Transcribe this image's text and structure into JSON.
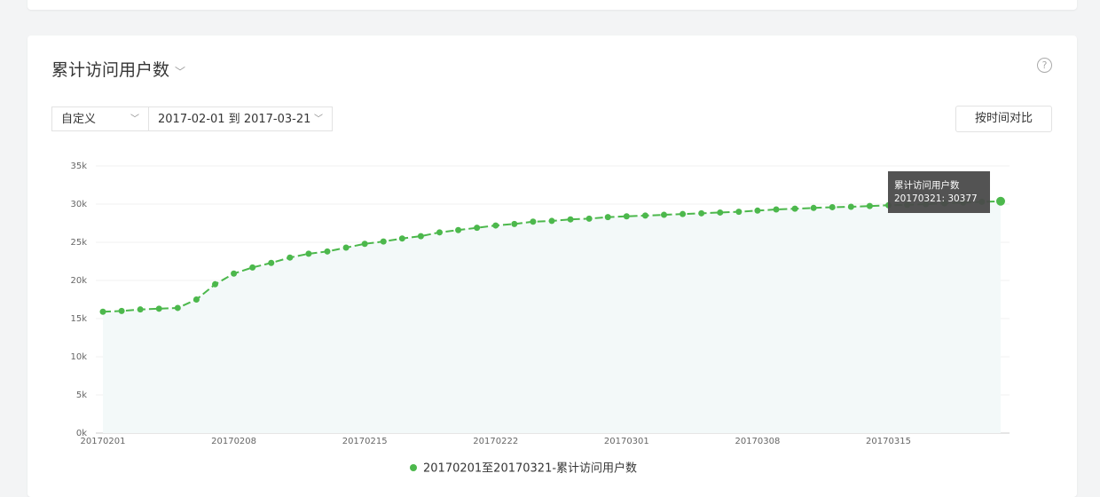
{
  "header": {
    "title": "累计访问用户数",
    "range_select": "自定义",
    "date_range": "2017-02-01 到 2017-03-21",
    "compare_button": "按时间对比"
  },
  "chart_data": {
    "type": "line",
    "categories": [
      "20170201",
      null,
      null,
      null,
      null,
      null,
      null,
      "20170208",
      null,
      null,
      null,
      null,
      null,
      null,
      "20170215",
      null,
      null,
      null,
      null,
      null,
      null,
      "20170222",
      null,
      null,
      null,
      null,
      null,
      null,
      "20170301",
      null,
      null,
      null,
      null,
      null,
      null,
      "20170308",
      null,
      null,
      null,
      null,
      null,
      null,
      "20170315",
      null,
      null,
      null,
      null,
      null,
      null
    ],
    "series": [
      {
        "name": "20170201至20170321-累计访问用户数",
        "color": "#4cb84c",
        "values": [
          15900,
          16000,
          16200,
          16300,
          16400,
          17500,
          19500,
          20900,
          21700,
          22300,
          23000,
          23500,
          23800,
          24300,
          24800,
          25100,
          25500,
          25800,
          26300,
          26600,
          26900,
          27200,
          27400,
          27700,
          27800,
          28000,
          28100,
          28300,
          28400,
          28500,
          28600,
          28700,
          28800,
          28900,
          29000,
          29150,
          29300,
          29400,
          29500,
          29600,
          29650,
          29750,
          29850,
          29900,
          30000,
          30100,
          30200,
          30300,
          30377
        ]
      }
    ],
    "ylim": [
      0,
      35000
    ],
    "yticks": [
      {
        "value": 0,
        "label": "0k"
      },
      {
        "value": 5000,
        "label": "5k"
      },
      {
        "value": 10000,
        "label": "10k"
      },
      {
        "value": 15000,
        "label": "15k"
      },
      {
        "value": 20000,
        "label": "20k"
      },
      {
        "value": 25000,
        "label": "25k"
      },
      {
        "value": 30000,
        "label": "30k"
      },
      {
        "value": 35000,
        "label": "35k"
      }
    ],
    "grid": true,
    "tooltip": {
      "title": "累计访问用户数",
      "label": "20170321: 30377"
    }
  }
}
